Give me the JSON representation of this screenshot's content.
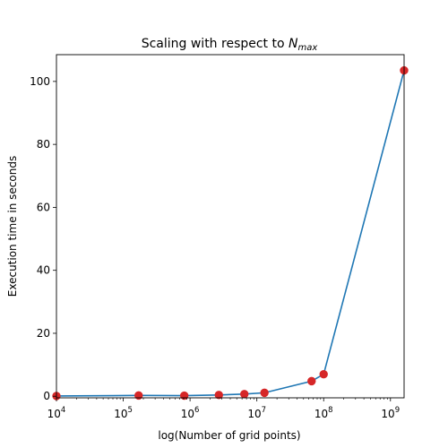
{
  "chart_data": {
    "type": "line",
    "title": {
      "prefix": "Scaling with respect to ",
      "symbol": "N",
      "subscript": "max"
    },
    "xlabel": "log(Number of grid points)",
    "ylabel": "Execution time in seconds",
    "x_scale": "log",
    "xlim": [
      10000,
      1600000000
    ],
    "ylim": [
      -0.5,
      108.5
    ],
    "x_ticks": [
      {
        "value": 10000,
        "base": "10",
        "exp": "4"
      },
      {
        "value": 100000,
        "base": "10",
        "exp": "5"
      },
      {
        "value": 1000000,
        "base": "10",
        "exp": "6"
      },
      {
        "value": 10000000,
        "base": "10",
        "exp": "7"
      },
      {
        "value": 100000000,
        "base": "10",
        "exp": "8"
      },
      {
        "value": 1000000000,
        "base": "10",
        "exp": "9"
      }
    ],
    "y_ticks": [
      {
        "value": 0,
        "label": "0"
      },
      {
        "value": 20,
        "label": "20"
      },
      {
        "value": 40,
        "label": "40"
      },
      {
        "value": 60,
        "label": "60"
      },
      {
        "value": 80,
        "label": "80"
      },
      {
        "value": 100,
        "label": "100"
      }
    ],
    "grid": false,
    "legend": "none",
    "line_color": "#1f77b4",
    "marker_color": "#d62728",
    "series": [
      {
        "x": [
          10000,
          170000,
          820000,
          2700000,
          6500000,
          13000000,
          66000000,
          100000000,
          1600000000
        ],
        "y": [
          0.1,
          0.25,
          0.2,
          0.4,
          0.7,
          1.1,
          4.8,
          7.0,
          103.5
        ]
      }
    ]
  }
}
